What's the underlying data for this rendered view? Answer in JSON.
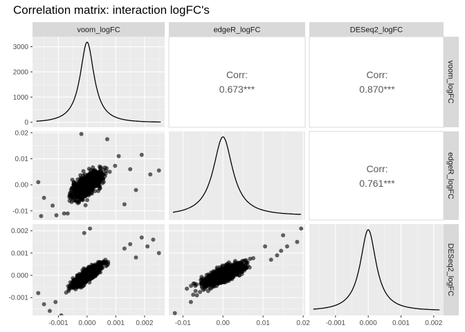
{
  "chart_data": {
    "type": "scatter-matrix",
    "title": "Correlation matrix: interaction logFC's",
    "variables": [
      "voom_logFC",
      "edgeR_logFC",
      "DESeq2_logFC"
    ],
    "axes": {
      "voom_logFC": {
        "range": [
          -0.0019,
          0.0027
        ],
        "ticks": [
          -0.001,
          0.0,
          0.001,
          0.002
        ],
        "tick_labels": [
          "-0.001",
          "0.000",
          "0.001",
          "0.002"
        ]
      },
      "edgeR_logFC": {
        "range": [
          -0.0135,
          0.0205
        ],
        "ticks": [
          -0.01,
          0.0,
          0.01,
          0.02
        ],
        "tick_labels": [
          "-0.01",
          "0.00",
          "0.01",
          "0.02"
        ]
      },
      "DESeq2_logFC": {
        "range": [
          -0.0018,
          0.0023
        ],
        "ticks": [
          -0.001,
          0.0,
          0.001,
          0.002
        ],
        "tick_labels": [
          "-0.001",
          "0.000",
          "0.001",
          "0.002"
        ]
      }
    },
    "density_axis": {
      "range": [
        -200,
        3400
      ],
      "ticks": [
        0,
        1000,
        2000,
        3000
      ],
      "tick_labels": [
        "0",
        "1000",
        "2000",
        "3000"
      ],
      "peak": 3180
    },
    "correlations": [
      {
        "row": 0,
        "col": 1,
        "label": "Corr:",
        "value": "0.673***"
      },
      {
        "row": 0,
        "col": 2,
        "label": "Corr:",
        "value": "0.870***"
      },
      {
        "row": 1,
        "col": 2,
        "label": "Corr:",
        "value": "0.761***"
      }
    ],
    "scatter_panels": [
      {
        "row": 1,
        "col": 0,
        "x": "voom_logFC",
        "y": "edgeR_logFC",
        "outliers": [
          [
            -0.0002,
            0.0195
          ],
          [
            0.0007,
            0.0175
          ],
          [
            0.0019,
            0.0115
          ],
          [
            0.0025,
            0.0055
          ],
          [
            0.0015,
            0.006
          ],
          [
            -0.0016,
            -0.012
          ],
          [
            -0.0012,
            -0.008
          ],
          [
            0.0013,
            -0.0075
          ],
          [
            0.0022,
            0.004
          ],
          [
            -0.0015,
            -0.005
          ],
          [
            0.0017,
            -0.002
          ],
          [
            -0.0017,
            0.001
          ],
          [
            0.0011,
            0.011
          ],
          [
            -0.0008,
            -0.011
          ]
        ]
      },
      {
        "row": 2,
        "col": 0,
        "x": "voom_logFC",
        "y": "DESeq2_logFC",
        "outliers": [
          [
            -0.0015,
            -0.0013
          ],
          [
            -0.0017,
            -0.0008
          ],
          [
            -0.0013,
            -0.0016
          ],
          [
            -0.0009,
            -0.0018
          ],
          [
            0.0019,
            0.0017
          ],
          [
            0.0023,
            0.0016
          ],
          [
            0.0025,
            0.001
          ],
          [
            0.0015,
            0.0014
          ],
          [
            0.0013,
            0.0012
          ],
          [
            0.0001,
            0.0021
          ],
          [
            -0.0001,
            0.0019
          ],
          [
            0.0021,
            0.0013
          ],
          [
            -0.0011,
            -0.0012
          ],
          [
            0.0017,
            0.0008
          ]
        ]
      },
      {
        "row": 2,
        "col": 1,
        "x": "edgeR_logFC",
        "y": "DESeq2_logFC",
        "outliers": [
          [
            0.0195,
            0.0021
          ],
          [
            0.0185,
            0.0015
          ],
          [
            0.016,
            0.0013
          ],
          [
            0.0145,
            0.0011
          ],
          [
            0.0135,
            0.0009
          ],
          [
            -0.012,
            -0.0017
          ],
          [
            -0.008,
            -0.0012
          ],
          [
            -0.009,
            -0.0006
          ],
          [
            0.012,
            0.0007
          ],
          [
            0.0105,
            0.0013
          ],
          [
            -0.0065,
            -0.0009
          ],
          [
            0.015,
            0.0018
          ]
        ]
      }
    ],
    "grid": true,
    "background": "#ebebeb",
    "strip_background": "#d9d9d9",
    "point_color": "#000000",
    "point_alpha": 0.6
  }
}
